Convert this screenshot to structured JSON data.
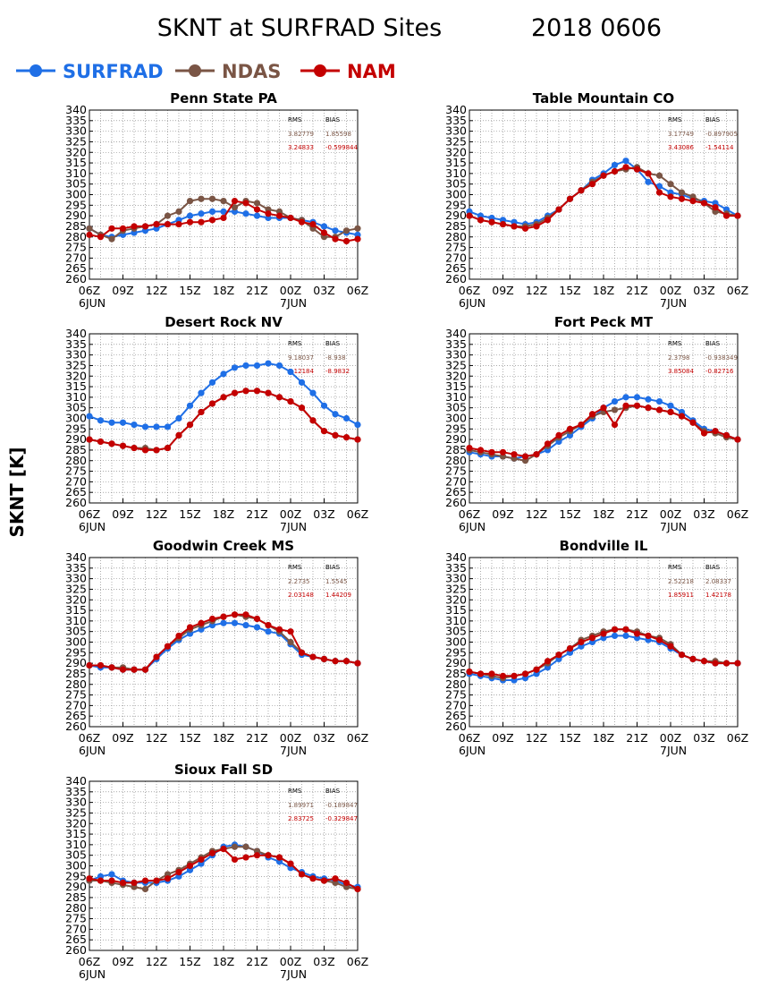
{
  "header": {
    "title": "SKNT at SURFRAD Sites",
    "date": "2018 0606"
  },
  "legend": [
    {
      "name": "SURFRAD",
      "color": "#1f6fe6"
    },
    {
      "name": "NDAS",
      "color": "#7a5545"
    },
    {
      "name": "NAM",
      "color": "#c40000"
    }
  ],
  "ylabel": "SKNT [K]",
  "stats_header": {
    "rms": "RMS",
    "bias": "BIAS"
  },
  "axes": {
    "x_ticks": [
      "06Z",
      "09Z",
      "12Z",
      "15Z",
      "18Z",
      "21Z",
      "00Z",
      "03Z",
      "06Z"
    ],
    "x_day_labels": [
      "6JUN",
      "7JUN"
    ],
    "y_ticks": [
      260,
      265,
      270,
      275,
      280,
      285,
      290,
      295,
      300,
      305,
      310,
      315,
      320,
      325,
      330,
      335,
      340
    ],
    "ylim": [
      260,
      340
    ],
    "xlim": [
      0,
      24
    ]
  },
  "chart_data": [
    {
      "type": "line",
      "title": "Penn State PA",
      "stats": {
        "ndas": [
          "3.82779",
          "1.85598"
        ],
        "nam": [
          "3.24833",
          "-0.599844"
        ]
      },
      "x": [
        0,
        1,
        2,
        3,
        4,
        5,
        6,
        7,
        8,
        9,
        10,
        11,
        12,
        13,
        14,
        15,
        16,
        17,
        18,
        19,
        20,
        21,
        22,
        23,
        24
      ],
      "series": [
        {
          "name": "SURFRAD",
          "values": [
            284,
            281,
            280,
            281,
            282,
            283,
            284,
            286,
            288,
            290,
            291,
            292,
            292,
            292,
            291,
            290,
            289,
            289,
            289,
            288,
            287,
            285,
            283,
            282,
            281
          ]
        },
        {
          "name": "NDAS",
          "values": [
            284,
            281,
            279,
            283,
            284,
            285,
            286,
            290,
            292,
            297,
            298,
            298,
            297,
            294,
            297,
            296,
            293,
            292,
            289,
            288,
            284,
            280,
            280,
            283,
            284
          ]
        },
        {
          "name": "NAM",
          "values": [
            281,
            280,
            284,
            284,
            285,
            285,
            286,
            286,
            286,
            287,
            287,
            288,
            289,
            297,
            296,
            293,
            291,
            290,
            289,
            287,
            286,
            282,
            279,
            278,
            279
          ]
        }
      ]
    },
    {
      "type": "line",
      "title": "Table Mountain CO",
      "stats": {
        "ndas": [
          "3.17749",
          "-0.897905"
        ],
        "nam": [
          "3.43086",
          "-1.54114"
        ]
      },
      "x": [
        0,
        1,
        2,
        3,
        4,
        5,
        6,
        7,
        8,
        9,
        10,
        11,
        12,
        13,
        14,
        15,
        16,
        17,
        18,
        19,
        20,
        21,
        22,
        23,
        24
      ],
      "series": [
        {
          "name": "SURFRAD",
          "values": [
            292,
            290,
            289,
            288,
            287,
            286,
            287,
            290,
            293,
            298,
            302,
            307,
            310,
            314,
            316,
            312,
            306,
            304,
            301,
            300,
            298,
            297,
            296,
            293,
            290
          ]
        },
        {
          "name": "NDAS",
          "values": [
            290,
            288,
            287,
            286,
            285,
            285,
            286,
            289,
            293,
            298,
            302,
            306,
            309,
            311,
            312,
            313,
            310,
            309,
            305,
            301,
            299,
            296,
            292,
            291,
            290
          ]
        },
        {
          "name": "NAM",
          "values": [
            290,
            288,
            287,
            286,
            285,
            284,
            285,
            288,
            293,
            298,
            302,
            305,
            309,
            311,
            313,
            312,
            310,
            301,
            299,
            298,
            297,
            296,
            294,
            290,
            290
          ]
        }
      ]
    },
    {
      "type": "line",
      "title": "Desert Rock NV",
      "stats": {
        "ndas": [
          "9.18037",
          "-8.938"
        ],
        "nam": [
          "9.12184",
          "-8.9832"
        ]
      },
      "x": [
        0,
        1,
        2,
        3,
        4,
        5,
        6,
        7,
        8,
        9,
        10,
        11,
        12,
        13,
        14,
        15,
        16,
        17,
        18,
        19,
        20,
        21,
        22,
        23,
        24
      ],
      "series": [
        {
          "name": "SURFRAD",
          "values": [
            301,
            299,
            298,
            298,
            297,
            296,
            296,
            296,
            300,
            306,
            312,
            317,
            321,
            324,
            325,
            325,
            326,
            325,
            322,
            317,
            312,
            306,
            302,
            300,
            297
          ]
        },
        {
          "name": "NDAS",
          "values": [
            290,
            289,
            288,
            287,
            286,
            286,
            285,
            286,
            292,
            297,
            303,
            307,
            310,
            312,
            313,
            313,
            312,
            310,
            308,
            305,
            299,
            294,
            292,
            291,
            290
          ]
        },
        {
          "name": "NAM",
          "values": [
            290,
            289,
            288,
            287,
            286,
            285,
            285,
            286,
            292,
            297,
            303,
            307,
            310,
            312,
            313,
            313,
            312,
            310,
            308,
            305,
            299,
            294,
            292,
            291,
            290
          ]
        }
      ]
    },
    {
      "type": "line",
      "title": "Fort Peck MT",
      "stats": {
        "ndas": [
          "2.3798",
          "-0.938349"
        ],
        "nam": [
          "3.85084",
          "-0.82716"
        ]
      },
      "x": [
        0,
        1,
        2,
        3,
        4,
        5,
        6,
        7,
        8,
        9,
        10,
        11,
        12,
        13,
        14,
        15,
        16,
        17,
        18,
        19,
        20,
        21,
        22,
        23,
        24
      ],
      "series": [
        {
          "name": "SURFRAD",
          "values": [
            284,
            283,
            282,
            282,
            281,
            282,
            283,
            285,
            289,
            292,
            296,
            300,
            305,
            308,
            310,
            310,
            309,
            308,
            306,
            303,
            299,
            295,
            294,
            292,
            290
          ]
        },
        {
          "name": "NDAS",
          "values": [
            285,
            284,
            283,
            282,
            281,
            280,
            283,
            287,
            291,
            294,
            297,
            301,
            303,
            304,
            305,
            306,
            305,
            304,
            303,
            301,
            298,
            294,
            293,
            291,
            290
          ]
        },
        {
          "name": "NAM",
          "values": [
            286,
            285,
            284,
            284,
            283,
            282,
            283,
            288,
            292,
            295,
            297,
            302,
            305,
            297,
            306,
            306,
            305,
            304,
            303,
            301,
            298,
            293,
            294,
            292,
            290
          ]
        }
      ]
    },
    {
      "type": "line",
      "title": "Goodwin Creek MS",
      "stats": {
        "ndas": [
          "2.2735",
          "1.5545"
        ],
        "nam": [
          "2.03148",
          "1.44209"
        ]
      },
      "x": [
        0,
        1,
        2,
        3,
        4,
        5,
        6,
        7,
        8,
        9,
        10,
        11,
        12,
        13,
        14,
        15,
        16,
        17,
        18,
        19,
        20,
        21,
        22,
        23,
        24
      ],
      "series": [
        {
          "name": "SURFRAD",
          "values": [
            289,
            288,
            288,
            287,
            287,
            287,
            292,
            297,
            301,
            304,
            306,
            308,
            309,
            309,
            308,
            307,
            305,
            304,
            299,
            294,
            293,
            292,
            291,
            291,
            290
          ]
        },
        {
          "name": "NDAS",
          "values": [
            289,
            289,
            288,
            288,
            287,
            287,
            293,
            298,
            302,
            306,
            308,
            310,
            312,
            313,
            312,
            311,
            308,
            305,
            300,
            295,
            293,
            292,
            291,
            291,
            290
          ]
        },
        {
          "name": "NAM",
          "values": [
            289,
            289,
            288,
            287,
            287,
            287,
            293,
            298,
            303,
            307,
            309,
            311,
            312,
            313,
            313,
            311,
            308,
            306,
            305,
            295,
            293,
            292,
            291,
            291,
            290
          ]
        }
      ]
    },
    {
      "type": "line",
      "title": "Bondville IL",
      "stats": {
        "ndas": [
          "2.52218",
          "2.08337"
        ],
        "nam": [
          "1.85911",
          "1.42178"
        ]
      },
      "x": [
        0,
        1,
        2,
        3,
        4,
        5,
        6,
        7,
        8,
        9,
        10,
        11,
        12,
        13,
        14,
        15,
        16,
        17,
        18,
        19,
        20,
        21,
        22,
        23,
        24
      ],
      "series": [
        {
          "name": "SURFRAD",
          "values": [
            285,
            284,
            283,
            282,
            282,
            283,
            285,
            288,
            292,
            295,
            298,
            300,
            302,
            303,
            303,
            302,
            301,
            300,
            297,
            294,
            292,
            291,
            290,
            290,
            290
          ]
        },
        {
          "name": "NDAS",
          "values": [
            286,
            285,
            284,
            283,
            284,
            285,
            287,
            290,
            294,
            297,
            301,
            303,
            305,
            306,
            306,
            305,
            303,
            302,
            299,
            294,
            292,
            291,
            291,
            290,
            290
          ]
        },
        {
          "name": "NAM",
          "values": [
            286,
            285,
            285,
            284,
            284,
            285,
            287,
            291,
            294,
            297,
            300,
            302,
            304,
            306,
            306,
            304,
            303,
            301,
            298,
            294,
            292,
            291,
            290,
            290,
            290
          ]
        }
      ]
    },
    {
      "type": "line",
      "title": "Sioux Fall SD",
      "stats": {
        "ndas": [
          "1.89971",
          "-0.189847"
        ],
        "nam": [
          "2.83725",
          "-0.329847"
        ]
      },
      "x": [
        0,
        1,
        2,
        3,
        4,
        5,
        6,
        7,
        8,
        9,
        10,
        11,
        12,
        13,
        14,
        15,
        16,
        17,
        18,
        19,
        20,
        21,
        22,
        23,
        24
      ],
      "series": [
        {
          "name": "SURFRAD",
          "values": [
            293,
            295,
            296,
            293,
            292,
            292,
            292,
            293,
            295,
            298,
            301,
            305,
            309,
            310,
            309,
            307,
            304,
            302,
            299,
            297,
            295,
            294,
            293,
            291,
            290
          ]
        },
        {
          "name": "NDAS",
          "values": [
            293,
            293,
            292,
            291,
            290,
            289,
            293,
            296,
            298,
            301,
            304,
            307,
            308,
            309,
            309,
            307,
            305,
            304,
            301,
            296,
            294,
            293,
            292,
            290,
            289
          ]
        },
        {
          "name": "NAM",
          "values": [
            294,
            293,
            293,
            292,
            292,
            293,
            293,
            294,
            297,
            300,
            303,
            306,
            308,
            303,
            304,
            305,
            305,
            304,
            301,
            296,
            294,
            293,
            294,
            292,
            289
          ]
        }
      ]
    }
  ]
}
